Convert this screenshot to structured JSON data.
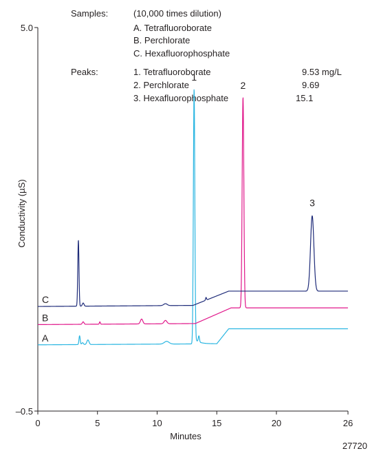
{
  "figure_id": "27720",
  "samples": {
    "label": "Samples:",
    "lines": [
      "(10,000 times dilution)",
      "A. Tetrafluoroborate",
      "B. Perchlorate",
      "C. Hexafluorophosphate"
    ]
  },
  "peaks": {
    "label": "Peaks:",
    "items": [
      {
        "name": "1. Tetrafluoroborate",
        "value": "9.53 mg/L"
      },
      {
        "name": "2. Perchlorate",
        "value": "9.69"
      },
      {
        "name": "3. Hexafluorophosphate",
        "value": "15.1"
      }
    ]
  },
  "chart_data": {
    "type": "line",
    "xlabel": "Minutes",
    "ylabel": "Conductivity (µS)",
    "xlim": [
      0,
      26
    ],
    "ylim": [
      -0.5,
      5.0
    ],
    "x_ticks": [
      "0",
      "5",
      "10",
      "15",
      "20",
      "26"
    ],
    "x_tick_values": [
      0,
      5,
      10,
      15,
      20,
      26
    ],
    "y_tick_labels": [
      "5.0",
      "–0.5"
    ],
    "y_tick_values": [
      5.0,
      -0.5
    ],
    "colors": {
      "A": "#29b5e1",
      "B": "#e0168a",
      "C": "#1d2a78",
      "axis": "#231f20"
    },
    "series": [
      {
        "name": "A",
        "baseline_start": 0.45,
        "baseline_end": 0.68,
        "rise_start": 15.0,
        "rise_end": 16.0,
        "points": [
          [
            3.5,
            0.58
          ],
          [
            3.75,
            0.48
          ],
          [
            4.2,
            0.52
          ],
          [
            10.8,
            0.5
          ],
          [
            13.1,
            4.12
          ],
          [
            13.5,
            0.55
          ]
        ]
      },
      {
        "name": "B",
        "baseline_start": 0.74,
        "baseline_end": 0.98,
        "rise_start": 13.2,
        "rise_end": 16.2,
        "points": [
          [
            3.8,
            0.78
          ],
          [
            5.2,
            0.78
          ],
          [
            8.7,
            0.82
          ],
          [
            10.7,
            0.8
          ],
          [
            17.2,
            4.0
          ]
        ]
      },
      {
        "name": "C",
        "baseline_start": 1.0,
        "baseline_end": 1.22,
        "rise_start": 13.0,
        "rise_end": 16.0,
        "points": [
          [
            3.4,
            1.95
          ],
          [
            3.8,
            1.05
          ],
          [
            10.7,
            1.04
          ],
          [
            14.1,
            1.13
          ],
          [
            23.0,
            2.3
          ]
        ]
      }
    ],
    "peak_labels": [
      {
        "label": "1",
        "x": 13.1,
        "y": 4.22
      },
      {
        "label": "2",
        "x": 17.2,
        "y": 4.1
      },
      {
        "label": "3",
        "x": 23.0,
        "y": 2.42
      }
    ]
  }
}
